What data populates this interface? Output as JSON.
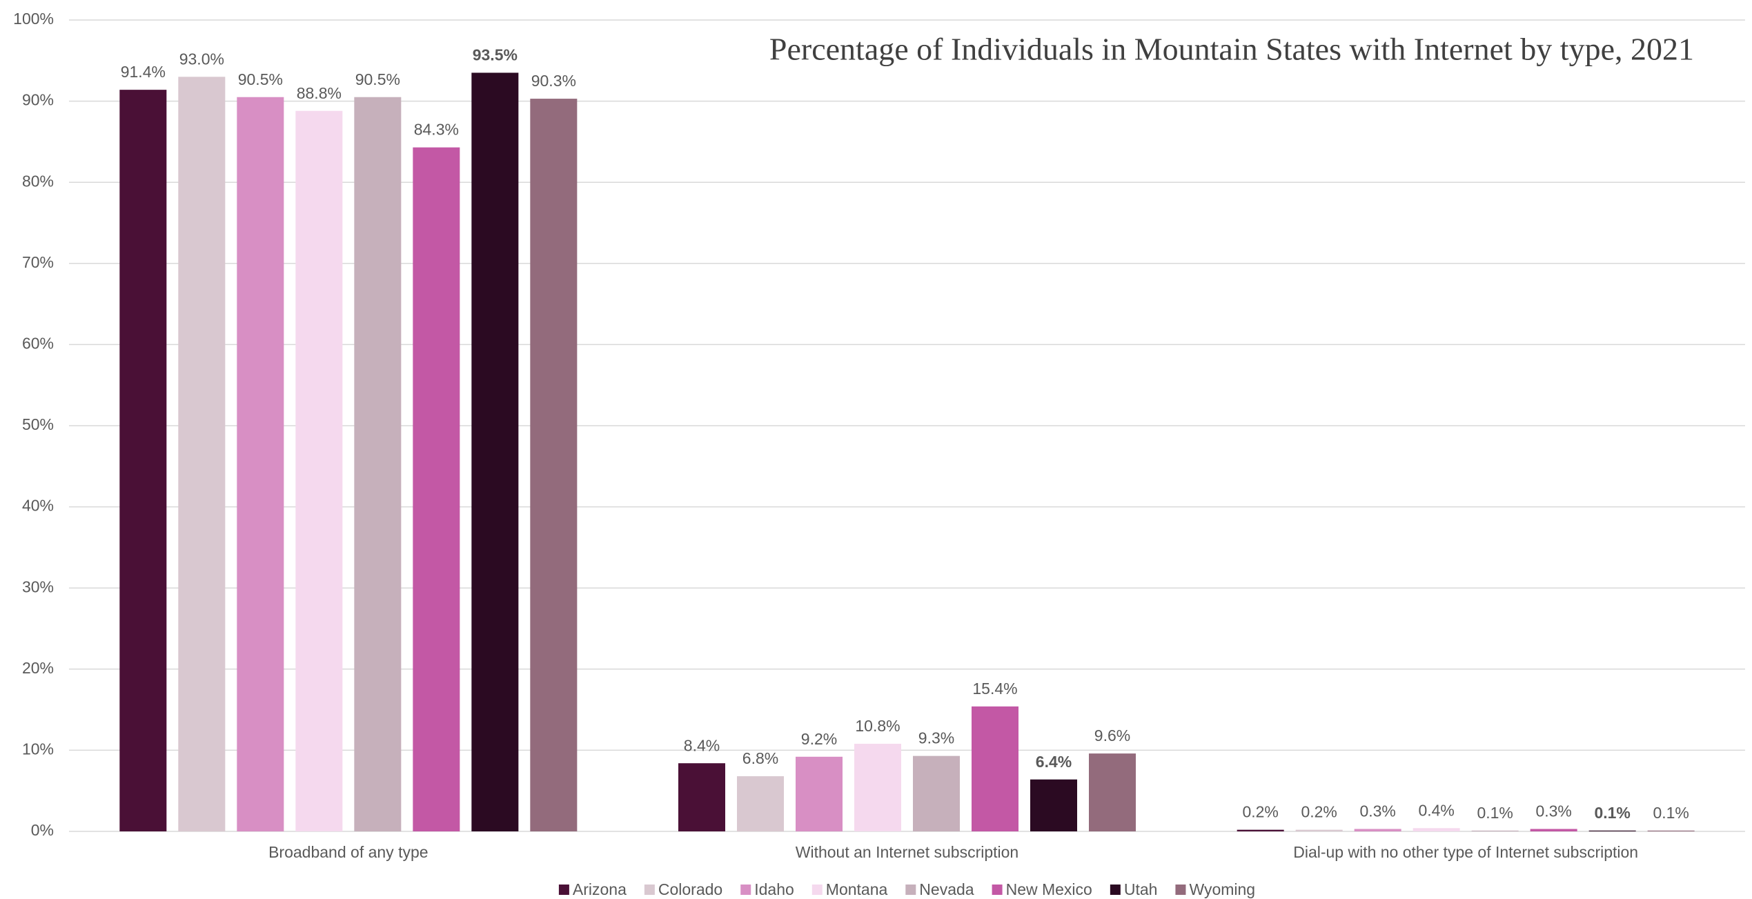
{
  "chart_data": {
    "type": "bar",
    "title": "Percentage of Individuals in Mountain States with Internet by type, 2021",
    "categories": [
      "Broadband of any type",
      "Without an Internet subscription",
      "Dial-up with no other type of Internet subscription"
    ],
    "series": [
      {
        "name": "Arizona",
        "color": "#4a1036",
        "values": [
          91.4,
          8.4,
          0.2
        ],
        "value_labels": [
          "91.4%",
          "8.4%",
          "0.2%"
        ]
      },
      {
        "name": "Colorado",
        "color": "#d9c8d0",
        "values": [
          93.0,
          6.8,
          0.2
        ],
        "value_labels": [
          "93.0%",
          "6.8%",
          "0.2%"
        ]
      },
      {
        "name": "Idaho",
        "color": "#d88fc4",
        "values": [
          90.5,
          9.2,
          0.3
        ],
        "value_labels": [
          "90.5%",
          "9.2%",
          "0.3%"
        ]
      },
      {
        "name": "Montana",
        "color": "#f5d9ee",
        "values": [
          88.8,
          10.8,
          0.4
        ],
        "value_labels": [
          "88.8%",
          "10.8%",
          "0.4%"
        ]
      },
      {
        "name": "Nevada",
        "color": "#c6b0bb",
        "values": [
          90.5,
          9.3,
          0.1
        ],
        "value_labels": [
          "90.5%",
          "9.3%",
          "0.1%"
        ]
      },
      {
        "name": "New Mexico",
        "color": "#c358a5",
        "values": [
          84.3,
          15.4,
          0.3
        ],
        "value_labels": [
          "84.3%",
          "15.4%",
          "0.3%"
        ]
      },
      {
        "name": "Utah",
        "color": "#2b0a22",
        "values": [
          93.5,
          6.4,
          0.1
        ],
        "value_labels": [
          "93.5%",
          "6.4%",
          "0.1%"
        ],
        "label_bold": true
      },
      {
        "name": "Wyoming",
        "color": "#936b7c",
        "values": [
          90.3,
          9.6,
          0.1
        ],
        "value_labels": [
          "90.3%",
          "9.6%",
          "0.1%"
        ]
      }
    ],
    "ylim": [
      0,
      100
    ],
    "yticks": [
      {
        "value": 0,
        "label": "0%"
      },
      {
        "value": 10,
        "label": "10%"
      },
      {
        "value": 20,
        "label": "20%"
      },
      {
        "value": 30,
        "label": "30%"
      },
      {
        "value": 40,
        "label": "40%"
      },
      {
        "value": 50,
        "label": "50%"
      },
      {
        "value": 60,
        "label": "60%"
      },
      {
        "value": 70,
        "label": "70%"
      },
      {
        "value": 80,
        "label": "80%"
      },
      {
        "value": 90,
        "label": "90%"
      },
      {
        "value": 100,
        "label": "100%"
      }
    ],
    "grid": true,
    "legend": "bottom"
  }
}
